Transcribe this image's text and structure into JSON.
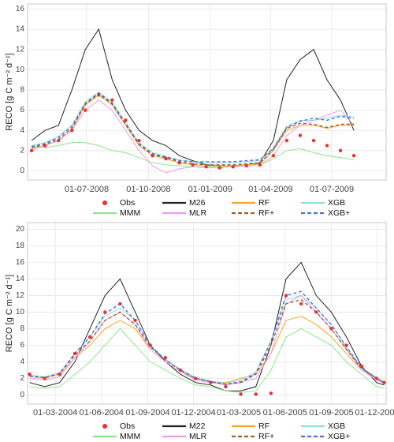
{
  "chart_data": [
    {
      "type": "line",
      "y_label": "RECO [g C m⁻² d⁻¹]",
      "xlim": [
        "2008-04-04",
        "2009-09-20"
      ],
      "ylim": [
        -0.9,
        16.5
      ],
      "yticks": [
        0,
        2,
        4,
        6,
        8,
        10,
        12,
        14,
        16
      ],
      "xticks": [
        {
          "value": "2008-07-01",
          "label": "01-07-2008"
        },
        {
          "value": "2008-10-01",
          "label": "01-10-2008"
        },
        {
          "value": "2009-01-01",
          "label": "01-01-2009"
        },
        {
          "value": "2009-04-01",
          "label": "01-04-2009"
        },
        {
          "value": "2009-07-01",
          "label": "01-07-2009"
        }
      ],
      "grid": true,
      "x": [
        "2008-04-10",
        "2008-04-30",
        "2008-05-20",
        "2008-06-09",
        "2008-06-29",
        "2008-07-19",
        "2008-08-08",
        "2008-08-28",
        "2008-09-17",
        "2008-10-07",
        "2008-10-27",
        "2008-11-16",
        "2008-12-06",
        "2008-12-26",
        "2009-01-15",
        "2009-02-04",
        "2009-02-24",
        "2009-03-16",
        "2009-04-05",
        "2009-04-25",
        "2009-05-15",
        "2009-06-04",
        "2009-06-24",
        "2009-07-14",
        "2009-08-03"
      ],
      "series": [
        {
          "name": "Obs",
          "color": "#e8322f",
          "marker": "point",
          "values": [
            2,
            2.5,
            3,
            4,
            6,
            7.5,
            7,
            5,
            3,
            1.5,
            1.2,
            0.8,
            0.6,
            0.4,
            0.3,
            0.4,
            0.5,
            0.6,
            1.5,
            3,
            3.5,
            3,
            2.5,
            2,
            1.5
          ]
        },
        {
          "name": "M26",
          "color": "#222222",
          "values": [
            3,
            4,
            4.5,
            8,
            12,
            14,
            9,
            6,
            4,
            3,
            2.5,
            1.5,
            1,
            0.6,
            0.5,
            0.5,
            0.6,
            0.8,
            3,
            9,
            11,
            12,
            9,
            7,
            4
          ]
        },
        {
          "name": "RF",
          "color": "#f5a623",
          "values": [
            2.2,
            2.5,
            3,
            4,
            6.5,
            7.5,
            6.5,
            4.5,
            2.5,
            1.5,
            1.2,
            0.8,
            0.6,
            0.5,
            0.5,
            0.5,
            0.6,
            0.7,
            2,
            4,
            4.5,
            4.5,
            4.2,
            4.5,
            4.5
          ]
        },
        {
          "name": "XGB",
          "color": "#8fe0d8",
          "values": [
            2.5,
            2.8,
            3.4,
            4.5,
            6.8,
            7.8,
            6.8,
            4.8,
            2.8,
            1.8,
            1.4,
            1.1,
            0.9,
            0.8,
            0.8,
            0.8,
            0.9,
            1,
            2.3,
            4.4,
            5,
            5,
            5.2,
            5.5,
            5.3
          ]
        },
        {
          "name": "MMM",
          "color": "#8ee68a",
          "values": [
            2.5,
            2.3,
            2.5,
            2.8,
            2.8,
            2.5,
            2,
            1.8,
            1.3,
            0.8,
            0.6,
            0.5,
            0.4,
            0.4,
            0.4,
            0.4,
            0.5,
            0.6,
            1.2,
            2,
            2.2,
            1.8,
            1.5,
            1.3,
            1.1
          ]
        },
        {
          "name": "MLR",
          "color": "#ee9cf0",
          "values": [
            2,
            2.5,
            3,
            4,
            6,
            7,
            6,
            4,
            2,
            0.5,
            -0.2,
            0.2,
            0.4,
            0.3,
            0.3,
            0.4,
            0.5,
            0.6,
            1.5,
            3.5,
            4.5,
            5,
            5.5,
            6,
            4.5
          ]
        },
        {
          "name": "RF+",
          "color": "#a0602d",
          "dash": true,
          "values": [
            2.3,
            2.6,
            3.1,
            4.2,
            6.6,
            7.6,
            6.6,
            4.6,
            2.6,
            1.6,
            1.3,
            0.9,
            0.7,
            0.6,
            0.6,
            0.6,
            0.7,
            0.8,
            2.1,
            4.2,
            4.7,
            4.6,
            4.3,
            4.6,
            4.6
          ]
        },
        {
          "name": "XGB+",
          "color": "#4a72e0",
          "dash": true,
          "values": [
            2.4,
            2.7,
            3.3,
            4.4,
            6.7,
            7.7,
            6.7,
            4.7,
            2.7,
            1.7,
            1.4,
            1,
            0.9,
            0.9,
            0.9,
            0.9,
            1,
            1.1,
            2.2,
            4.3,
            4.9,
            5.2,
            5,
            5.4,
            5.2
          ]
        }
      ]
    },
    {
      "type": "line",
      "y_label": "RECO [g C m⁻² d⁻¹]",
      "xlim": [
        "2004-01-06",
        "2005-12-19"
      ],
      "ylim": [
        -1.1,
        20.8
      ],
      "yticks": [
        0,
        2,
        4,
        6,
        8,
        10,
        12,
        14,
        16,
        18,
        20
      ],
      "xticks": [
        {
          "value": "2004-03-01",
          "label": "01-03-2004"
        },
        {
          "value": "2004-06-01",
          "label": "01-06-2004"
        },
        {
          "value": "2004-09-01",
          "label": "01-09-2004"
        },
        {
          "value": "2004-12-01",
          "label": "01-12-2004"
        },
        {
          "value": "2005-03-01",
          "label": "01-03-2005"
        },
        {
          "value": "2005-06-01",
          "label": "01-06-2005"
        },
        {
          "value": "2005-09-01",
          "label": "01-09-2005"
        },
        {
          "value": "2005-12-01",
          "label": "01-12-2005"
        }
      ],
      "grid": true,
      "x": [
        "2004-01-10",
        "2004-02-09",
        "2004-03-10",
        "2004-04-09",
        "2004-05-09",
        "2004-06-08",
        "2004-07-08",
        "2004-08-07",
        "2004-09-06",
        "2004-10-06",
        "2004-11-05",
        "2004-12-05",
        "2005-01-04",
        "2005-02-03",
        "2005-03-05",
        "2005-04-04",
        "2005-05-04",
        "2005-06-03",
        "2005-07-03",
        "2005-08-02",
        "2005-09-01",
        "2005-10-01",
        "2005-10-31",
        "2005-11-30",
        "2005-12-15"
      ],
      "series": [
        {
          "name": "Obs",
          "color": "#e8322f",
          "marker": "point",
          "values": [
            2.5,
            2,
            2.5,
            5,
            7,
            10,
            11,
            9,
            6,
            4.5,
            3,
            2,
            1.5,
            1,
            0.1,
            0.1,
            0.2,
            12,
            11,
            10,
            8,
            6,
            3.5,
            2,
            1.5
          ]
        },
        {
          "name": "M22",
          "color": "#222222",
          "values": [
            1.5,
            1,
            1.5,
            4,
            8,
            12,
            14,
            10,
            6,
            4,
            2.5,
            1.5,
            1.2,
            0.5,
            0.5,
            1,
            6,
            14,
            16,
            12,
            10,
            7,
            3.5,
            1.5,
            1.2
          ]
        },
        {
          "name": "RF",
          "color": "#f5a623",
          "values": [
            2.2,
            2,
            2.5,
            4.5,
            6,
            8,
            9,
            8,
            5.5,
            4,
            2.8,
            2,
            1.6,
            1.5,
            2,
            2.5,
            5,
            9,
            9.5,
            8.5,
            7,
            5,
            3,
            2,
            1.5
          ]
        },
        {
          "name": "XGB",
          "color": "#8fe0d8",
          "values": [
            2.4,
            2.2,
            2.7,
            5,
            7,
            9.5,
            10.5,
            9,
            6,
            4.3,
            3.1,
            2.1,
            1.7,
            1.4,
            1.8,
            2.8,
            6.5,
            11.5,
            12,
            10.5,
            8.5,
            5.8,
            3.3,
            2.1,
            1.6
          ]
        },
        {
          "name": "MMM",
          "color": "#8ee68a",
          "values": [
            1,
            0.8,
            1,
            2.5,
            4,
            6,
            8,
            6,
            4,
            3,
            2,
            1.2,
            1,
            0.5,
            0.3,
            0.5,
            3,
            7,
            8,
            7,
            6,
            4,
            2.5,
            1,
            0.8
          ]
        },
        {
          "name": "MLR",
          "color": "#ee9cf0",
          "values": [
            2,
            1.8,
            2.2,
            4.5,
            6.5,
            9,
            10,
            8.5,
            5.5,
            4,
            2.8,
            1.8,
            1.5,
            1.2,
            1.5,
            2,
            5,
            11,
            12,
            10,
            8,
            5.5,
            3,
            1.8,
            1.4
          ]
        },
        {
          "name": "RF+",
          "color": "#a0602d",
          "dash": true,
          "values": [
            2.3,
            2.1,
            2.6,
            4.8,
            6.5,
            9,
            10,
            8.5,
            5.8,
            4.2,
            3,
            2,
            1.6,
            1.3,
            1.5,
            2.5,
            6,
            11,
            11.5,
            10,
            8,
            5.5,
            3.2,
            2,
            1.5
          ]
        },
        {
          "name": "XGB+",
          "color": "#4a72e0",
          "dash": true,
          "values": [
            2.3,
            2.1,
            2.6,
            5,
            7,
            9.8,
            11,
            9,
            6,
            4.2,
            3,
            2,
            1.6,
            1.3,
            1.6,
            2.6,
            6.5,
            12,
            12.5,
            10.5,
            8.5,
            5.8,
            3.3,
            2,
            1.5
          ]
        }
      ]
    }
  ]
}
